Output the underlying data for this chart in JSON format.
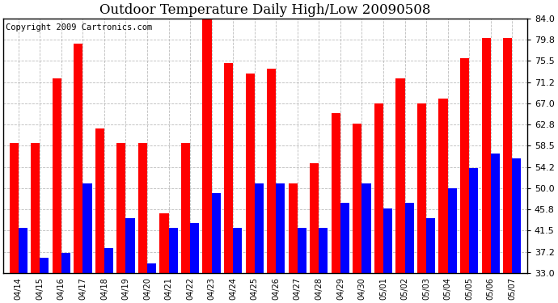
{
  "title": "Outdoor Temperature Daily High/Low 20090508",
  "copyright": "Copyright 2009 Cartronics.com",
  "dates": [
    "04/14",
    "04/15",
    "04/16",
    "04/17",
    "04/18",
    "04/19",
    "04/20",
    "04/21",
    "04/22",
    "04/23",
    "04/24",
    "04/25",
    "04/26",
    "04/27",
    "04/28",
    "04/29",
    "04/30",
    "05/01",
    "05/02",
    "05/03",
    "05/04",
    "05/05",
    "05/06",
    "05/07"
  ],
  "highs": [
    59,
    59,
    72,
    79,
    62,
    59,
    59,
    45,
    59,
    84,
    75,
    73,
    74,
    51,
    55,
    65,
    63,
    67,
    72,
    67,
    68,
    76,
    80,
    80
  ],
  "lows": [
    42,
    36,
    37,
    51,
    38,
    44,
    35,
    42,
    43,
    49,
    42,
    51,
    51,
    42,
    42,
    47,
    51,
    46,
    47,
    44,
    50,
    54,
    57,
    56
  ],
  "high_color": "#ff0000",
  "low_color": "#0000ff",
  "bg_color": "#ffffff",
  "grid_color": "#aaaaaa",
  "ymin": 33.0,
  "ymax": 84.0,
  "yticks": [
    33.0,
    37.2,
    41.5,
    45.8,
    50.0,
    54.2,
    58.5,
    62.8,
    67.0,
    71.2,
    75.5,
    79.8,
    84.0
  ],
  "title_fontsize": 12,
  "copyright_fontsize": 7.5,
  "bar_width": 0.42
}
